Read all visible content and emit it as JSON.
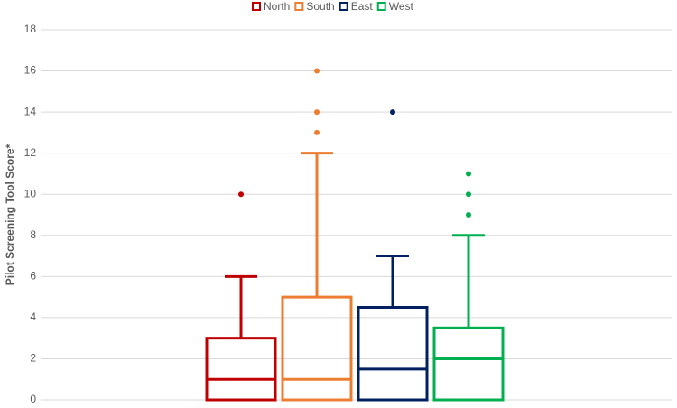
{
  "chart_data": {
    "type": "box",
    "y_label": "Pilot Screening Tool Score*",
    "ylim": [
      0,
      18
    ],
    "yticks": [
      0,
      2,
      4,
      6,
      8,
      10,
      12,
      14,
      16,
      18
    ],
    "grid": true,
    "legend": "top",
    "series": [
      {
        "name": "North",
        "color": "#c00000",
        "min": 0,
        "q1": 0,
        "median": 1,
        "q3": 3,
        "max": 6,
        "outliers": [
          10
        ]
      },
      {
        "name": "South",
        "color": "#ed7d31",
        "min": 0,
        "q1": 0,
        "median": 1,
        "q3": 5,
        "max": 12,
        "outliers": [
          13,
          14,
          16
        ]
      },
      {
        "name": "East",
        "color": "#002060",
        "min": 0,
        "q1": 0,
        "median": 1.5,
        "q3": 4.5,
        "max": 7,
        "outliers": [
          14
        ]
      },
      {
        "name": "West",
        "color": "#00b050",
        "min": 0,
        "q1": 0,
        "median": 2,
        "q3": 3.5,
        "max": 8,
        "outliers": [
          9,
          10,
          11
        ]
      }
    ]
  }
}
